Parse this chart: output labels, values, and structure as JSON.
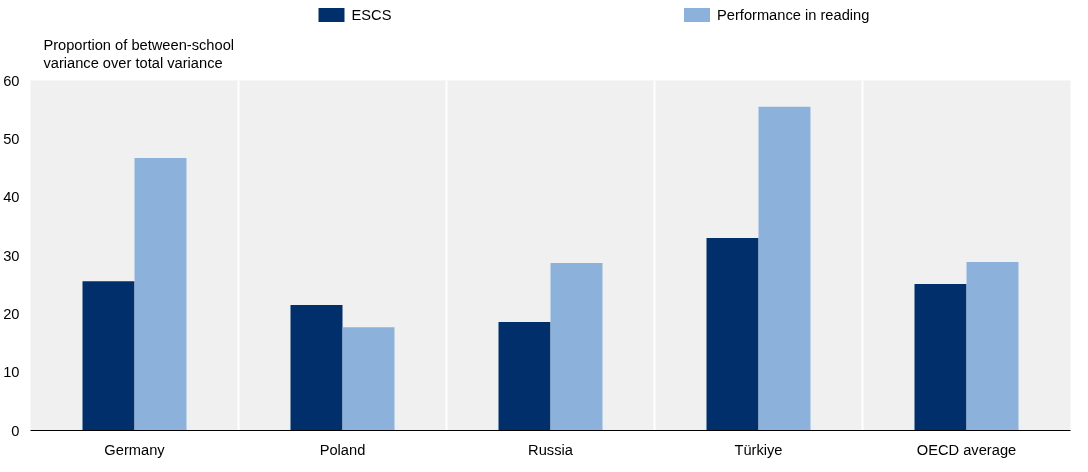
{
  "chart_data": {
    "type": "bar",
    "ylabel": "Proportion of between-school\nvariance over total variance",
    "categories": [
      "Germany",
      "Poland",
      "Russia",
      "Türkiye",
      "OECD average"
    ],
    "series": [
      {
        "name": "ESCS",
        "color": "#002f6c",
        "values": [
          25.6,
          21.5,
          18.6,
          33.0,
          25.1
        ]
      },
      {
        "name": "Performance in reading",
        "color": "#8cb2dc",
        "values": [
          46.7,
          17.7,
          28.7,
          55.5,
          28.9
        ]
      }
    ],
    "ylim": [
      0,
      60
    ],
    "yticks": [
      0,
      10,
      20,
      30,
      40,
      50,
      60
    ],
    "grid": "x",
    "legend": "top"
  }
}
